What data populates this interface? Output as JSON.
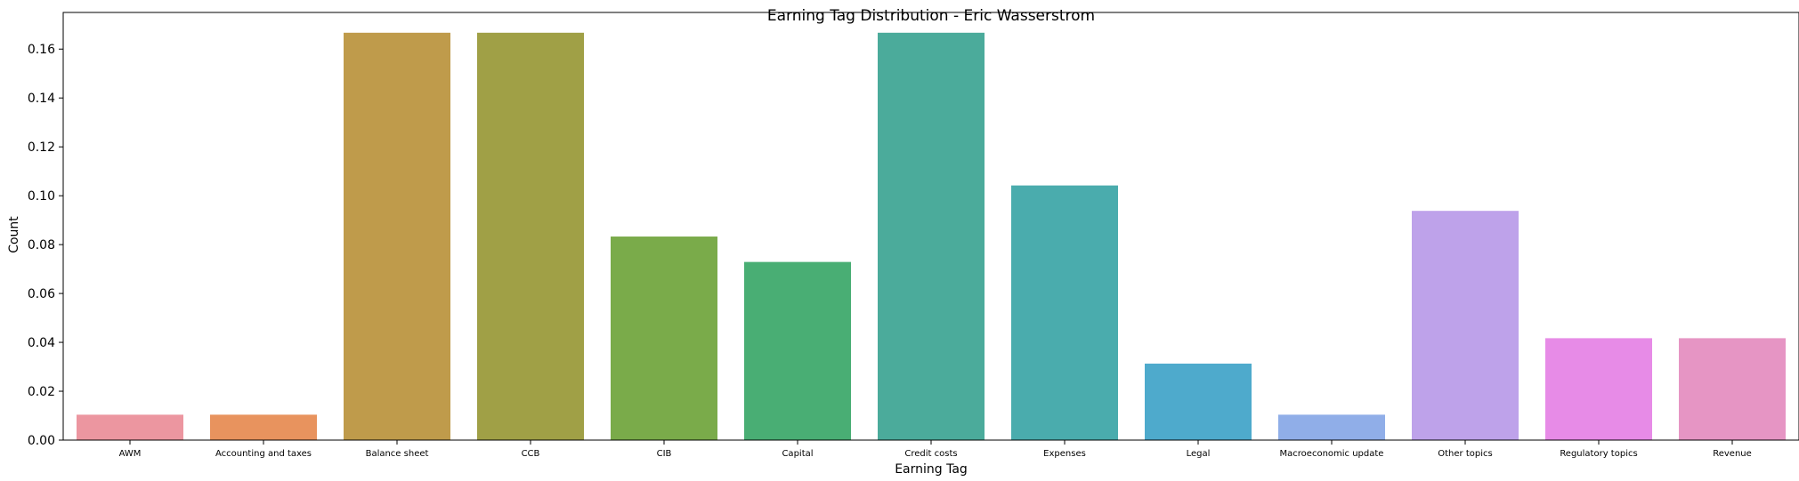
{
  "chart_data": {
    "type": "bar",
    "title": "Earning Tag Distribution - Eric Wasserstrom",
    "xlabel": "Earning Tag",
    "ylabel": "Count",
    "ylim": [
      0,
      0.175
    ],
    "yticks": [
      "0.00",
      "0.02",
      "0.04",
      "0.06",
      "0.08",
      "0.10",
      "0.12",
      "0.14",
      "0.16"
    ],
    "categories": [
      "AWM",
      "Accounting and taxes",
      "Balance sheet",
      "CCB",
      "CIB",
      "Capital",
      "Credit costs",
      "Expenses",
      "Legal",
      "Macroeconomic update",
      "Other topics",
      "Regulatory topics",
      "Revenue"
    ],
    "values": [
      0.0104,
      0.0104,
      0.1667,
      0.1667,
      0.0833,
      0.0729,
      0.1667,
      0.1042,
      0.0313,
      0.0104,
      0.0938,
      0.0417,
      0.0417
    ],
    "colors": [
      "#ec96a0",
      "#e8935e",
      "#bf9b4b",
      "#a0a046",
      "#7aab4a",
      "#49ae74",
      "#4bab9b",
      "#4aacad",
      "#4eaacc",
      "#90aee8",
      "#bea2ea",
      "#e78be7",
      "#e695c4"
    ],
    "grid": false,
    "legend": "none"
  }
}
